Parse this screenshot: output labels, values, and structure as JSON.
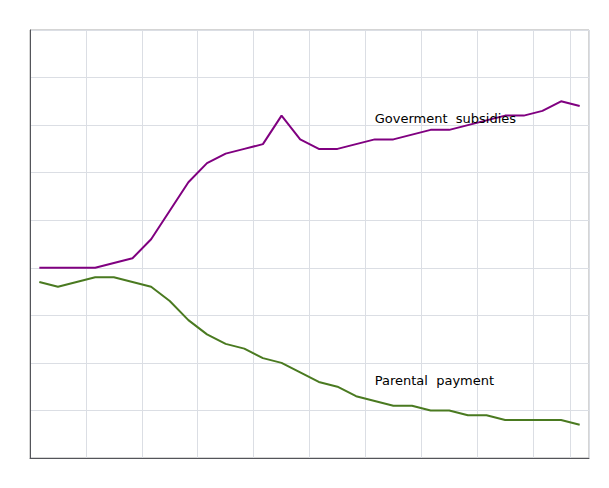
{
  "chart_data": {
    "type": "line",
    "categories": [
      null,
      null,
      null,
      null,
      null,
      null,
      null,
      null,
      null,
      null,
      null,
      null,
      null,
      null,
      null,
      null,
      null,
      null,
      null,
      null,
      null,
      null,
      null,
      null,
      null,
      null,
      null,
      null,
      null,
      null
    ],
    "series": [
      {
        "name": "Goverment  subsidies",
        "color": "#800080",
        "values": [
          0.5,
          0.5,
          0.5,
          0.5,
          0.51,
          0.52,
          0.56,
          0.62,
          0.68,
          0.72,
          0.74,
          0.75,
          0.76,
          0.82,
          0.77,
          0.75,
          0.75,
          0.76,
          0.77,
          0.77,
          0.78,
          0.79,
          0.79,
          0.8,
          0.81,
          0.82,
          0.82,
          0.83,
          0.85,
          0.84
        ]
      },
      {
        "name": "Parental  payment",
        "color": "#4a7a20",
        "values": [
          0.47,
          0.46,
          0.47,
          0.48,
          0.48,
          0.47,
          0.46,
          0.43,
          0.39,
          0.36,
          0.34,
          0.33,
          0.31,
          0.3,
          0.28,
          0.26,
          0.25,
          0.23,
          0.22,
          0.21,
          0.21,
          0.2,
          0.2,
          0.19,
          0.19,
          0.18,
          0.18,
          0.18,
          0.18,
          0.17
        ]
      }
    ],
    "ylim": [
      0.1,
      1.0
    ],
    "yticks": [
      0.1,
      0.2,
      0.3,
      0.4,
      0.5,
      0.6,
      0.7,
      0.8,
      0.9,
      1.0
    ],
    "grid": true,
    "tick_labels": false
  }
}
